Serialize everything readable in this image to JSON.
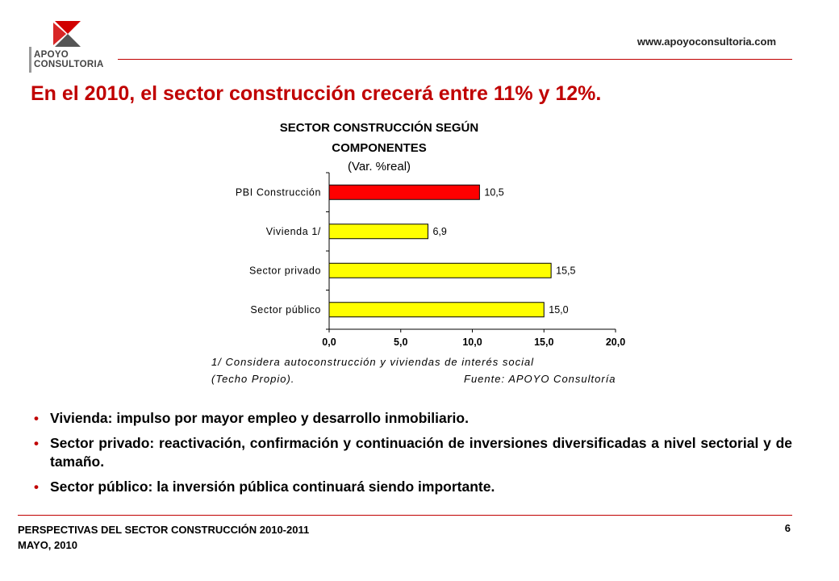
{
  "header": {
    "logo_line1": "APOYO",
    "logo_line2": "CONSULTORIA",
    "website": "www.apoyoconsultoria.com",
    "headline": "En el 2010, el sector construcción crecerá entre 11% y 12%."
  },
  "chart_title": {
    "line1": "SECTOR CONSTRUCCIÓN SEGÚN",
    "line2": "COMPONENTES",
    "line3": "(Var. %real)"
  },
  "chart_data": {
    "type": "bar",
    "orientation": "horizontal",
    "title": "SECTOR CONSTRUCCIÓN SEGÚN COMPONENTES (Var. %real)",
    "categories": [
      "PBI Construcción",
      "Vivienda 1/",
      "Sector privado",
      "Sector público"
    ],
    "values": [
      10.5,
      6.9,
      15.5,
      15.0
    ],
    "value_labels": [
      "10,5",
      "6,9",
      "15,5",
      "15,0"
    ],
    "bar_colors": [
      "#ff0000",
      "#ffff00",
      "#ffff00",
      "#ffff00"
    ],
    "xlim": [
      0,
      20
    ],
    "x_ticks": [
      0,
      5,
      10,
      15,
      20
    ],
    "x_tick_labels": [
      "0,0",
      "5,0",
      "10,0",
      "15,0",
      "20,0"
    ],
    "grid": false,
    "legend": "none"
  },
  "notes": {
    "line1": "1/ Considera autoconstrucción y viviendas de interés social",
    "line2": "(Techo Propio).",
    "source": "Fuente: APOYO Consultoría"
  },
  "bullets": [
    "Vivienda: impulso por mayor empleo y desarrollo inmobiliario.",
    "Sector privado: reactivación, confirmación y continuación de inversiones diversificadas a nivel sectorial y de tamaño.",
    "Sector público: la inversión pública continuará siendo importante."
  ],
  "footer": {
    "line1": "PERSPECTIVAS DEL SECTOR CONSTRUCCIÓN 2010-2011",
    "line2": "MAYO, 2010",
    "page": "6"
  },
  "colors": {
    "accent": "#c00000",
    "bar_highlight": "#ff0000",
    "bar_default": "#ffff00"
  }
}
